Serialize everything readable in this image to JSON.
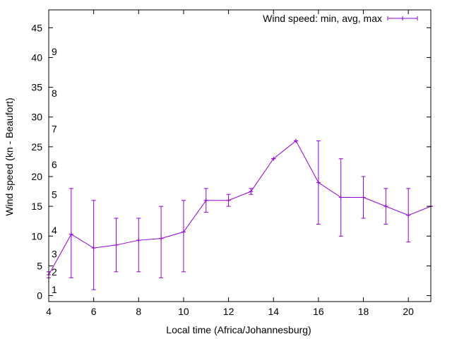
{
  "chart_data": {
    "type": "line",
    "title": "",
    "xlabel": "Local time (Africa/Johannesburg)",
    "ylabel": "Wind speed (kn - Beaufort)",
    "xlim": [
      4,
      21
    ],
    "ylim": [
      -1,
      48
    ],
    "grid": false,
    "legend_position": "top-right",
    "x_ticks": [
      4,
      6,
      8,
      10,
      12,
      14,
      16,
      18,
      20
    ],
    "y_ticks": [
      0,
      5,
      10,
      15,
      20,
      25,
      30,
      35,
      40,
      45
    ],
    "beaufort_labels": [
      {
        "label": "1",
        "value": 1
      },
      {
        "label": "2",
        "value": 4
      },
      {
        "label": "3",
        "value": 7
      },
      {
        "label": "4",
        "value": 11
      },
      {
        "label": "5",
        "value": 17
      },
      {
        "label": "6",
        "value": 22
      },
      {
        "label": "7",
        "value": 28
      },
      {
        "label": "8",
        "value": 34
      },
      {
        "label": "9",
        "value": 41
      }
    ],
    "series": [
      {
        "name": "Wind speed: min, avg, max",
        "color": "#9400d3",
        "x": [
          4,
          5,
          6,
          7,
          8,
          9,
          10,
          11,
          12,
          13,
          14,
          15,
          16,
          17,
          18,
          19,
          20,
          21
        ],
        "avg": [
          3.5,
          10.3,
          8,
          8.5,
          9.3,
          9.6,
          10.7,
          16,
          16,
          17.5,
          23,
          26,
          19,
          16.5,
          16.5,
          15,
          13.5,
          15
        ],
        "min": [
          3,
          3,
          1,
          4,
          4,
          3,
          4,
          14,
          15,
          17,
          23,
          26,
          12,
          10,
          13,
          12,
          9,
          15
        ],
        "max": [
          4,
          18,
          16,
          13,
          13,
          15,
          16,
          18,
          17,
          18,
          23,
          26,
          26,
          23,
          20,
          18,
          18,
          15
        ]
      }
    ]
  }
}
